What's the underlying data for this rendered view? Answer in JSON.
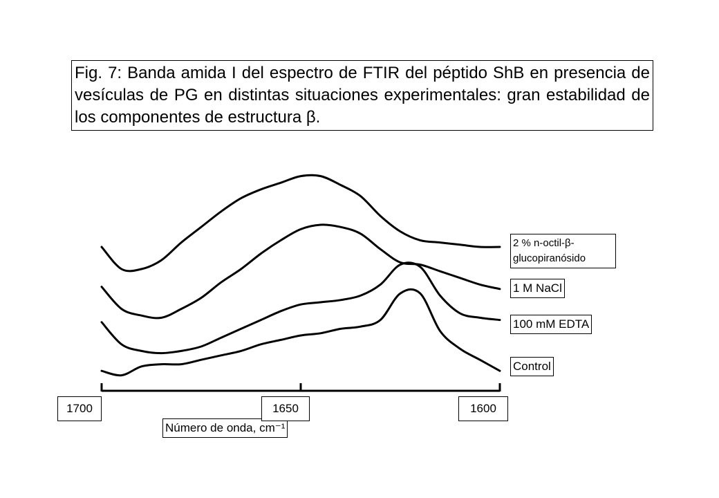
{
  "chart_data": {
    "type": "line",
    "title": "Fig. 7: Banda amida I del espectro de FTIR del péptido ShB en presencia de vesículas de PG en distintas situaciones experimentales: gran estabilidad de los componentes de estructura β.",
    "x_label": "Número de onda, cm⁻¹",
    "x": [
      1700,
      1695,
      1690,
      1685,
      1680,
      1675,
      1670,
      1665,
      1660,
      1655,
      1650,
      1645,
      1640,
      1635,
      1630,
      1625,
      1620,
      1615,
      1610,
      1605,
      1600
    ],
    "xlim": [
      1700,
      1600
    ],
    "xticks": [
      1700,
      1650,
      1600
    ],
    "ylim": [
      0,
      100
    ],
    "series": [
      {
        "name": "2 % n-octil-β-glucopiranósido",
        "color": "#000000",
        "values": [
          65,
          55,
          55,
          59,
          67,
          74,
          81,
          87,
          91,
          94,
          97,
          97,
          93,
          88,
          79,
          72,
          68,
          67,
          66,
          65,
          65
        ]
      },
      {
        "name": "1 M NaCl",
        "color": "#000000",
        "values": [
          47,
          37,
          34,
          33,
          37,
          42,
          49,
          55,
          62,
          68,
          73,
          75,
          74,
          71,
          64,
          58,
          57,
          54,
          51,
          48,
          46
        ]
      },
      {
        "name": "100 mM EDTA",
        "color": "#000000",
        "values": [
          31,
          21,
          18,
          17,
          18,
          20,
          24,
          28,
          32,
          36,
          39,
          40,
          41,
          43,
          48,
          57,
          56,
          43,
          35,
          33,
          32
        ]
      },
      {
        "name": "Control",
        "color": "#000000",
        "values": [
          9,
          7,
          11,
          12,
          12,
          14,
          16,
          18,
          21,
          23,
          25,
          26,
          28,
          29,
          32,
          44,
          44,
          27,
          19,
          14,
          9
        ]
      }
    ]
  }
}
